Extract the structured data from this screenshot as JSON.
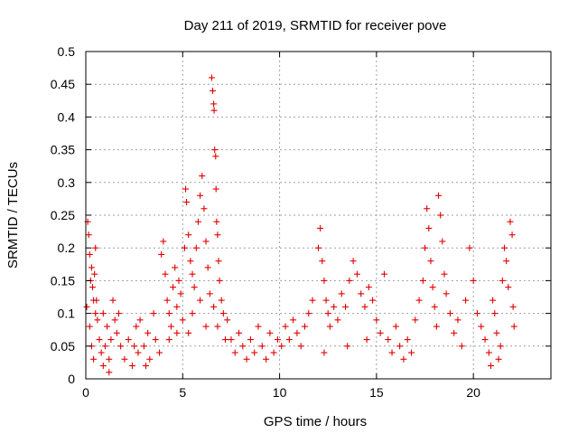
{
  "chart_data": {
    "type": "scatter",
    "title": "Day 211 of 2019, SRMTID for receiver pove",
    "xlabel": "GPS time / hours",
    "ylabel": "SRMTID / TECUs",
    "xlim": [
      0,
      24
    ],
    "ylim": [
      0,
      0.5
    ],
    "xticks": [
      0,
      5,
      10,
      15,
      20
    ],
    "yticks": [
      0,
      0.05,
      0.1,
      0.15,
      0.2,
      0.25,
      0.3,
      0.35,
      0.4,
      0.45,
      0.5
    ],
    "xtick_labels": [
      "0",
      "5",
      "10",
      "15",
      "20"
    ],
    "ytick_labels": [
      "0",
      "0.05",
      "0.1",
      "0.15",
      "0.2",
      "0.25",
      "0.3",
      "0.35",
      "0.4",
      "0.45",
      "0.5"
    ],
    "grid": true,
    "marker": "plus",
    "marker_color": "#e00000",
    "series": [
      {
        "name": "SRMTID",
        "points": [
          [
            0.05,
            0.11
          ],
          [
            0.1,
            0.24
          ],
          [
            0.15,
            0.22
          ],
          [
            0.2,
            0.19
          ],
          [
            0.25,
            0.15
          ],
          [
            0.3,
            0.17
          ],
          [
            0.35,
            0.14
          ],
          [
            0.4,
            0.12
          ],
          [
            0.45,
            0.16
          ],
          [
            0.5,
            0.2
          ],
          [
            0.2,
            0.08
          ],
          [
            0.3,
            0.05
          ],
          [
            0.4,
            0.03
          ],
          [
            0.5,
            0.1
          ],
          [
            0.55,
            0.12
          ],
          [
            0.6,
            0.09
          ],
          [
            0.7,
            0.06
          ],
          [
            0.8,
            0.04
          ],
          [
            0.9,
            0.02
          ],
          [
            1.0,
            0.05
          ],
          [
            1.1,
            0.08
          ],
          [
            1.2,
            0.03
          ],
          [
            1.3,
            0.06
          ],
          [
            1.4,
            0.12
          ],
          [
            1.5,
            0.09
          ],
          [
            1.6,
            0.07
          ],
          [
            1.7,
            0.1
          ],
          [
            1.8,
            0.05
          ],
          [
            0.9,
            0.1
          ],
          [
            1.2,
            0.01
          ],
          [
            2.0,
            0.03
          ],
          [
            2.2,
            0.06
          ],
          [
            2.4,
            0.02
          ],
          [
            2.6,
            0.08
          ],
          [
            2.7,
            0.04
          ],
          [
            2.8,
            0.09
          ],
          [
            3.0,
            0.05
          ],
          [
            3.2,
            0.07
          ],
          [
            3.3,
            0.03
          ],
          [
            3.5,
            0.1
          ],
          [
            3.6,
            0.06
          ],
          [
            3.8,
            0.04
          ],
          [
            2.5,
            0.05
          ],
          [
            3.1,
            0.02
          ],
          [
            3.9,
            0.19
          ],
          [
            4.0,
            0.21
          ],
          [
            4.1,
            0.16
          ],
          [
            4.2,
            0.12
          ],
          [
            4.3,
            0.1
          ],
          [
            4.4,
            0.08
          ],
          [
            4.5,
            0.14
          ],
          [
            4.6,
            0.17
          ],
          [
            4.7,
            0.11
          ],
          [
            4.8,
            0.15
          ],
          [
            4.9,
            0.13
          ],
          [
            5.0,
            0.09
          ],
          [
            5.1,
            0.2
          ],
          [
            4.3,
            0.06
          ],
          [
            4.7,
            0.07
          ],
          [
            5.15,
            0.29
          ],
          [
            5.2,
            0.27
          ],
          [
            5.3,
            0.22
          ],
          [
            5.4,
            0.18
          ],
          [
            5.5,
            0.16
          ],
          [
            5.6,
            0.14
          ],
          [
            5.7,
            0.2
          ],
          [
            5.8,
            0.24
          ],
          [
            5.9,
            0.28
          ],
          [
            6.0,
            0.31
          ],
          [
            6.1,
            0.26
          ],
          [
            6.2,
            0.21
          ],
          [
            6.3,
            0.17
          ],
          [
            6.4,
            0.13
          ],
          [
            5.5,
            0.1
          ],
          [
            5.9,
            0.12
          ],
          [
            6.2,
            0.08
          ],
          [
            5.3,
            0.07
          ],
          [
            6.5,
            0.46
          ],
          [
            6.55,
            0.44
          ],
          [
            6.6,
            0.42
          ],
          [
            6.62,
            0.41
          ],
          [
            6.65,
            0.35
          ],
          [
            6.7,
            0.34
          ],
          [
            6.72,
            0.29
          ],
          [
            6.75,
            0.24
          ],
          [
            6.8,
            0.22
          ],
          [
            6.85,
            0.18
          ],
          [
            6.9,
            0.15
          ],
          [
            7.0,
            0.12
          ],
          [
            7.1,
            0.1
          ],
          [
            6.6,
            0.11
          ],
          [
            6.8,
            0.08
          ],
          [
            7.2,
            0.06
          ],
          [
            7.3,
            0.09
          ],
          [
            7.5,
            0.06
          ],
          [
            7.7,
            0.04
          ],
          [
            7.9,
            0.07
          ],
          [
            8.1,
            0.05
          ],
          [
            8.3,
            0.03
          ],
          [
            8.5,
            0.06
          ],
          [
            8.7,
            0.04
          ],
          [
            8.9,
            0.08
          ],
          [
            9.1,
            0.05
          ],
          [
            9.3,
            0.03
          ],
          [
            9.5,
            0.07
          ],
          [
            9.7,
            0.04
          ],
          [
            9.9,
            0.06
          ],
          [
            10.1,
            0.05
          ],
          [
            10.3,
            0.08
          ],
          [
            10.5,
            0.06
          ],
          [
            10.7,
            0.09
          ],
          [
            10.9,
            0.07
          ],
          [
            11.1,
            0.05
          ],
          [
            11.3,
            0.08
          ],
          [
            11.5,
            0.1
          ],
          [
            11.7,
            0.12
          ],
          [
            12.0,
            0.2
          ],
          [
            12.1,
            0.23
          ],
          [
            12.2,
            0.18
          ],
          [
            12.3,
            0.15
          ],
          [
            12.4,
            0.12
          ],
          [
            12.5,
            0.1
          ],
          [
            12.6,
            0.08
          ],
          [
            12.8,
            0.11
          ],
          [
            13.0,
            0.09
          ],
          [
            13.2,
            0.13
          ],
          [
            13.4,
            0.11
          ],
          [
            13.6,
            0.15
          ],
          [
            13.8,
            0.18
          ],
          [
            14.0,
            0.16
          ],
          [
            14.2,
            0.13
          ],
          [
            14.4,
            0.11
          ],
          [
            14.6,
            0.14
          ],
          [
            14.8,
            0.12
          ],
          [
            15.0,
            0.09
          ],
          [
            15.2,
            0.07
          ],
          [
            12.3,
            0.04
          ],
          [
            13.5,
            0.05
          ],
          [
            14.5,
            0.06
          ],
          [
            15.4,
            0.16
          ],
          [
            15.6,
            0.06
          ],
          [
            15.8,
            0.04
          ],
          [
            16.0,
            0.08
          ],
          [
            16.2,
            0.05
          ],
          [
            16.4,
            0.03
          ],
          [
            16.6,
            0.06
          ],
          [
            16.8,
            0.04
          ],
          [
            17.0,
            0.09
          ],
          [
            17.2,
            0.12
          ],
          [
            17.4,
            0.15
          ],
          [
            17.5,
            0.2
          ],
          [
            17.6,
            0.26
          ],
          [
            17.7,
            0.23
          ],
          [
            17.8,
            0.18
          ],
          [
            17.9,
            0.14
          ],
          [
            18.0,
            0.11
          ],
          [
            18.1,
            0.08
          ],
          [
            18.2,
            0.28
          ],
          [
            18.3,
            0.25
          ],
          [
            18.4,
            0.21
          ],
          [
            18.5,
            0.16
          ],
          [
            18.6,
            0.13
          ],
          [
            18.8,
            0.1
          ],
          [
            19.0,
            0.07
          ],
          [
            19.2,
            0.09
          ],
          [
            19.4,
            0.05
          ],
          [
            19.6,
            0.12
          ],
          [
            19.8,
            0.2
          ],
          [
            20.0,
            0.15
          ],
          [
            20.2,
            0.1
          ],
          [
            20.4,
            0.08
          ],
          [
            20.6,
            0.06
          ],
          [
            20.8,
            0.04
          ],
          [
            21.0,
            0.12
          ],
          [
            21.1,
            0.1
          ],
          [
            21.2,
            0.07
          ],
          [
            21.4,
            0.05
          ],
          [
            21.5,
            0.15
          ],
          [
            21.6,
            0.2
          ],
          [
            21.7,
            0.18
          ],
          [
            21.8,
            0.14
          ],
          [
            21.9,
            0.24
          ],
          [
            22.0,
            0.22
          ],
          [
            22.05,
            0.11
          ],
          [
            22.1,
            0.08
          ],
          [
            21.3,
            0.03
          ],
          [
            20.9,
            0.02
          ]
        ]
      }
    ]
  }
}
